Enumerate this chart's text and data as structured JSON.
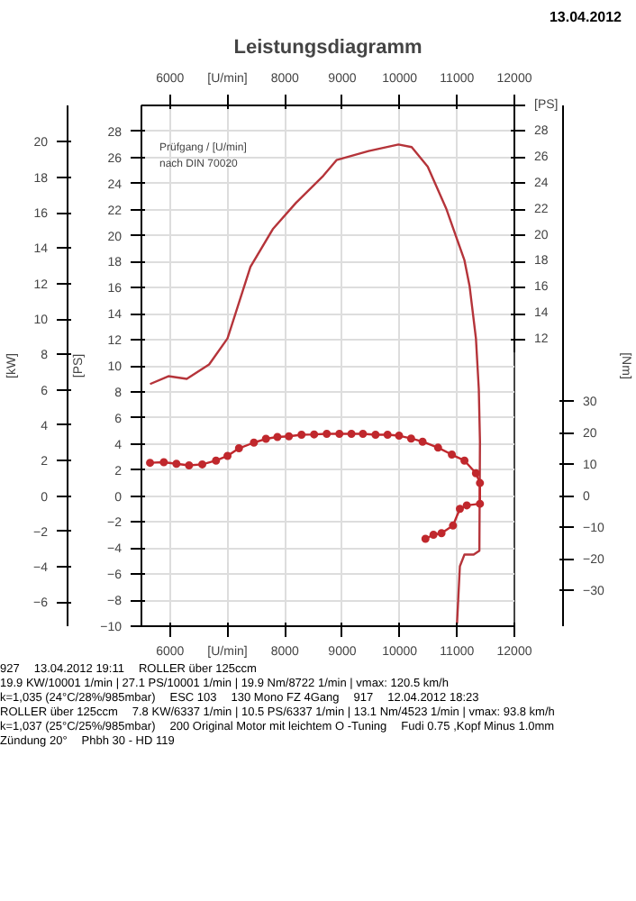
{
  "chart_data": {
    "type": "line",
    "title": "Leistungsdiagramm",
    "ylabel": "[PS]",
    "y2label": "[kW]",
    "y3label": "[Nm]",
    "xlim": [
      5500,
      12000
    ],
    "xticks": [
      6000,
      {
        "value": 7000,
        "label": "[U/min]"
      },
      8000,
      9000,
      10000,
      11000,
      12000
    ],
    "x2lim": [
      5500,
      12000
    ],
    "x2ticks": [
      6000,
      {
        "value": 7000,
        "label": "[U/min]"
      },
      8000,
      9000,
      10000,
      11000,
      12000
    ],
    "ylim": [
      -10,
      30
    ],
    "yticks": [
      -10,
      -8,
      -6,
      -4,
      -2,
      0,
      2,
      4,
      6,
      8,
      10,
      12,
      14,
      16,
      18,
      20,
      22,
      24,
      26,
      28
    ],
    "y2lim": [
      -7.35,
      22.06
    ],
    "y2ticks": [
      -6,
      -4,
      -2,
      0,
      2,
      4,
      6,
      8,
      10,
      12,
      14,
      16,
      18,
      20
    ],
    "y3lim": [
      -41.3,
      123.8
    ],
    "y3ticks": [
      -30,
      -20,
      -10,
      0,
      10,
      20,
      30
    ],
    "grid": true,
    "series": [
      {
        "color": "#b5343a",
        "marker": "none",
        "x": [
          5650,
          5970,
          6290,
          6680,
          7000,
          7400,
          7790,
          8190,
          8670,
          8900,
          9460,
          9980,
          10210,
          10490,
          10810,
          11130,
          11220,
          11330,
          11380,
          11400,
          11390,
          11290,
          11130,
          11050,
          11000
        ],
        "values": [
          8.6,
          9.2,
          9.0,
          10.1,
          12.1,
          17.6,
          20.5,
          22.5,
          24.6,
          25.8,
          26.5,
          27.0,
          26.8,
          25.3,
          22.1,
          18.1,
          16.1,
          12.1,
          8.2,
          4.2,
          -4.2,
          -4.5,
          -4.5,
          -5.4,
          -9.8
        ]
      },
      {
        "color": "#c0282d",
        "marker": "circle",
        "axis": "y3",
        "x": [
          5650,
          5890,
          6110,
          6330,
          6560,
          6800,
          7000,
          7200,
          7460,
          7670,
          7870,
          8070,
          8290,
          8510,
          8730,
          8950,
          9160,
          9360,
          9580,
          9790,
          9990,
          10200,
          10400,
          10670,
          10910,
          11130,
          11330,
          11400,
          11400,
          11170,
          11050,
          10930,
          10730,
          10590,
          10450
        ],
        "values": [
          10.5,
          10.7,
          10.2,
          9.7,
          10.0,
          11.2,
          12.7,
          15.1,
          16.9,
          18.1,
          18.7,
          18.9,
          19.4,
          19.5,
          19.7,
          19.7,
          19.7,
          19.7,
          19.4,
          19.4,
          19.1,
          18.2,
          17.2,
          15.3,
          13.1,
          11.2,
          7.2,
          4.1,
          -2.5,
          -3.0,
          -4.1,
          -9.4,
          -11.8,
          -12.3,
          -13.6
        ]
      }
    ],
    "annotations": [
      "13.04.2012",
      "Prüfgang / [U/min]",
      "nach DIN 70020",
      "[PS]",
      "28",
      "26",
      "24",
      "22",
      "20",
      "18",
      "16",
      "14",
      "12",
      "927",
      "13.04.2012  19:11",
      "ROLLER über 125ccm",
      "19.9 KW/10001 1/min  |  27.1 PS/10001 1/min  |  19.9 Nm/8722 1/min | vmax: 120.5 km/h",
      "k=1,035 (24°C/28%/985mbar)",
      "ESC 103",
      "130 Mono FZ 4Gang",
      "917",
      "12.04.2012  18:23",
      "ROLLER über 125ccm",
      "7.8 KW/6337 1/min  |  10.5 PS/6337 1/min  |  13.1 Nm/4523 1/min | vmax: 93.8 km/h",
      "k=1,037 (25°C/25%/985mbar)",
      "200 Original Motor mit leichtem O -Tuning",
      "Fudi 0.75 ,Kopf Minus 1.0mm",
      "Zündung 20°",
      "Phbh 30 - HD 119"
    ]
  }
}
